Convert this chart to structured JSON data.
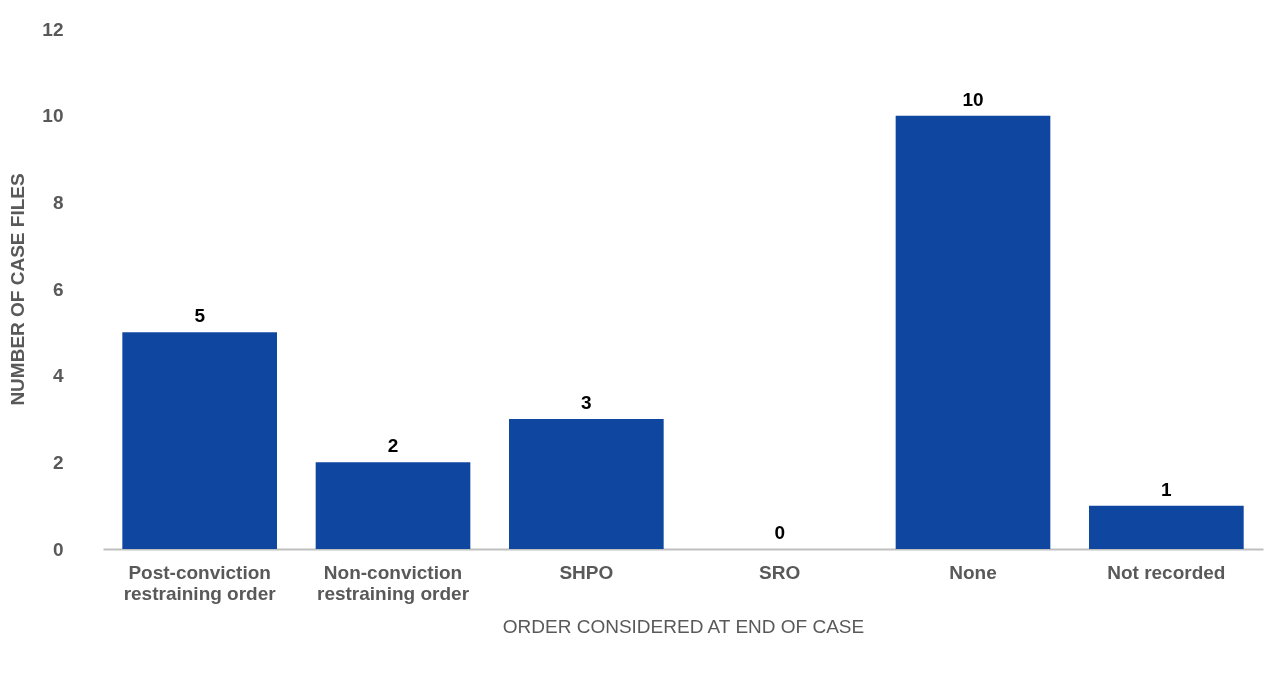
{
  "chart_data": {
    "type": "bar",
    "categories": [
      "Post-conviction restraining order",
      "Non-conviction restraining order",
      "SHPO",
      "SRO",
      "None",
      "Not recorded"
    ],
    "values": [
      5,
      2,
      3,
      0,
      10,
      1
    ],
    "color": "#0f47a0",
    "xlabel": "ORDER CONSIDERED AT END OF CASE",
    "ylabel": "NUMBER OF CASE FILES",
    "ylim": [
      0,
      12
    ],
    "yticks": [
      0,
      2,
      4,
      6,
      8,
      10,
      12
    ],
    "grid": false,
    "data_labels": true
  }
}
